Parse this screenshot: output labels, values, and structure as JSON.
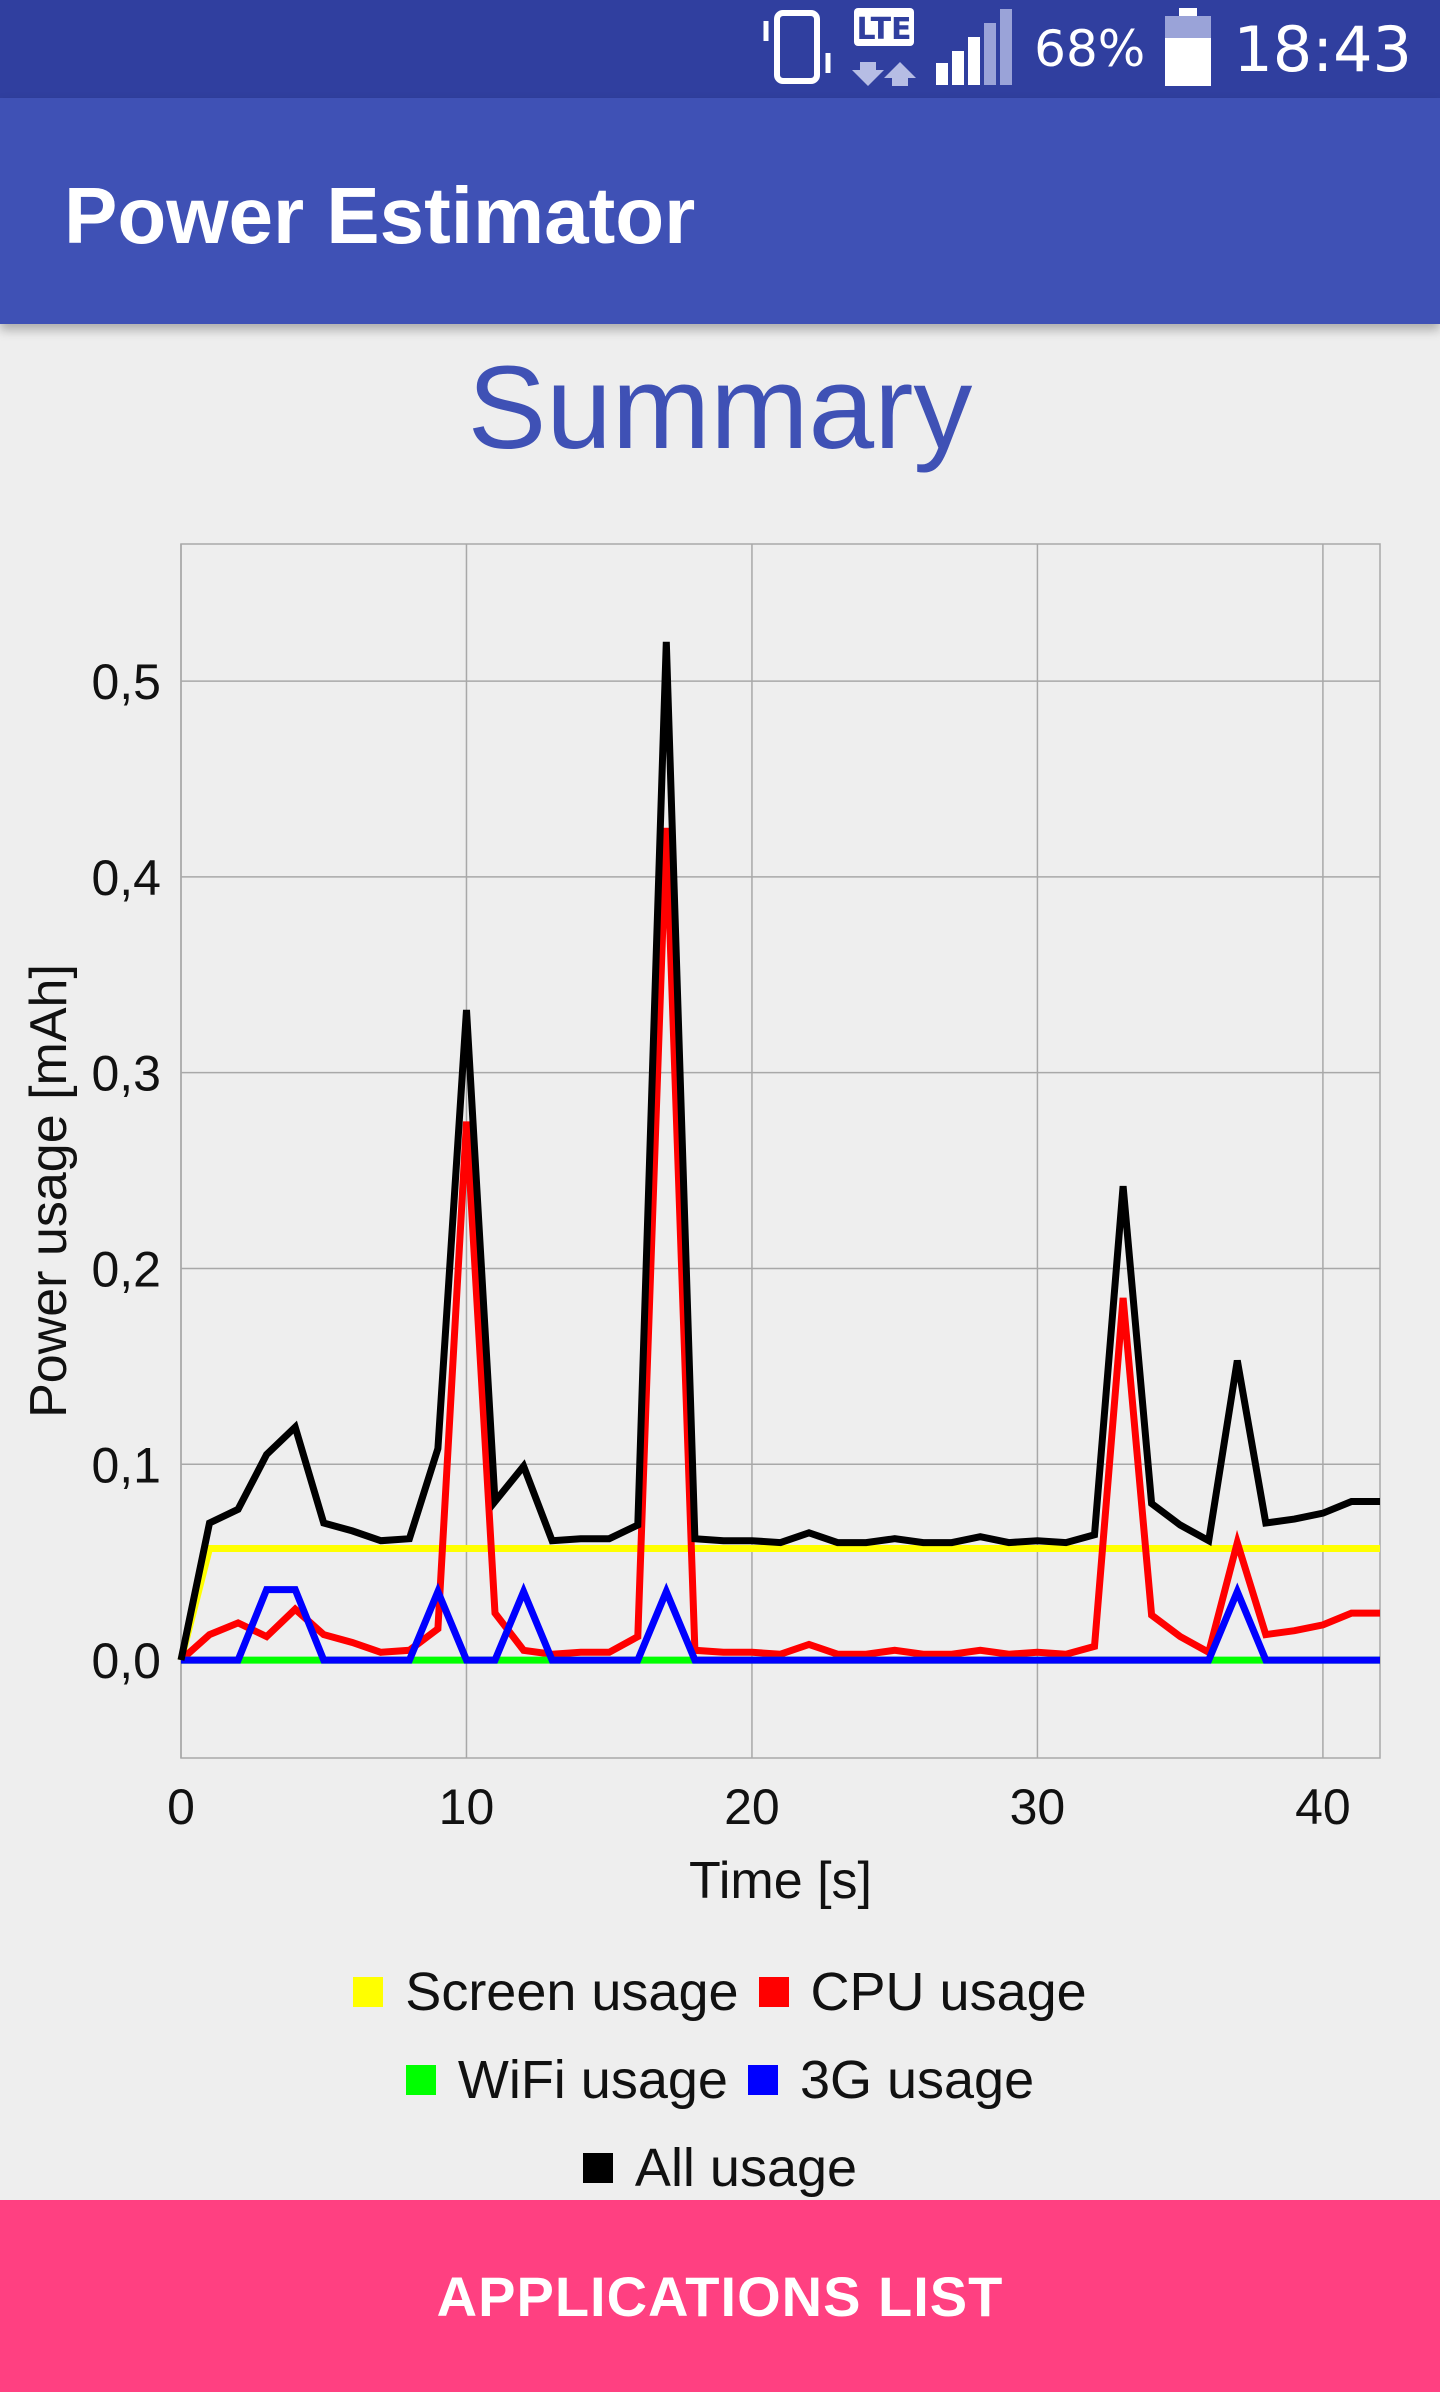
{
  "status_bar": {
    "network": "LTE",
    "battery": "68%",
    "clock": "18:43",
    "icons": [
      "vibrate-icon",
      "lte-data-icon",
      "signal-icon",
      "battery-icon"
    ]
  },
  "app_bar": {
    "title": "Power Estimator"
  },
  "summary": {
    "title": "Summary"
  },
  "chart_data": {
    "type": "line",
    "xlabel": "Time [s]",
    "ylabel": "Power usage [mAh]",
    "xlim": [
      0,
      42
    ],
    "ylim": [
      -0.05,
      0.57
    ],
    "x_ticks": [
      0,
      10,
      20,
      30,
      40
    ],
    "x_tick_labels": [
      "0",
      "10",
      "20",
      "30",
      "40"
    ],
    "y_ticks": [
      0,
      0.1,
      0.2,
      0.3,
      0.4,
      0.5
    ],
    "y_tick_labels": [
      "0,0",
      "0,1",
      "0,2",
      "0,3",
      "0,4",
      "0,5"
    ],
    "grid": true,
    "legend_position": "bottom",
    "x": [
      0,
      1,
      2,
      3,
      4,
      5,
      6,
      7,
      8,
      9,
      10,
      11,
      12,
      13,
      14,
      15,
      16,
      17,
      18,
      19,
      20,
      21,
      22,
      23,
      24,
      25,
      26,
      27,
      28,
      29,
      30,
      31,
      32,
      33,
      34,
      35,
      36,
      37,
      38,
      39,
      40,
      41,
      42
    ],
    "series": [
      {
        "name": "Screen usage",
        "color": "#ffff00",
        "values": [
          0,
          0.057,
          0.057,
          0.057,
          0.057,
          0.057,
          0.057,
          0.057,
          0.057,
          0.057,
          0.057,
          0.057,
          0.057,
          0.057,
          0.057,
          0.057,
          0.057,
          0.057,
          0.057,
          0.057,
          0.057,
          0.057,
          0.057,
          0.057,
          0.057,
          0.057,
          0.057,
          0.057,
          0.057,
          0.057,
          0.057,
          0.057,
          0.057,
          0.057,
          0.057,
          0.057,
          0.057,
          0.057,
          0.057,
          0.057,
          0.057,
          0.057,
          0.057
        ]
      },
      {
        "name": "CPU usage",
        "color": "#ff0000",
        "values": [
          0,
          0.013,
          0.019,
          0.012,
          0.026,
          0.013,
          0.009,
          0.004,
          0.005,
          0.016,
          0.275,
          0.024,
          0.005,
          0.003,
          0.004,
          0.004,
          0.012,
          0.425,
          0.005,
          0.004,
          0.004,
          0.003,
          0.008,
          0.003,
          0.003,
          0.005,
          0.003,
          0.003,
          0.005,
          0.003,
          0.004,
          0.003,
          0.007,
          0.185,
          0.023,
          0.012,
          0.004,
          0.06,
          0.013,
          0.015,
          0.018,
          0.024,
          0.024
        ]
      },
      {
        "name": "WiFi usage",
        "color": "#00ff00",
        "values": [
          0,
          0,
          0,
          0,
          0,
          0,
          0,
          0,
          0,
          0,
          0,
          0,
          0,
          0,
          0,
          0,
          0,
          0,
          0,
          0,
          0,
          0,
          0,
          0,
          0,
          0,
          0,
          0,
          0,
          0,
          0,
          0,
          0,
          0,
          0,
          0,
          0,
          0,
          0,
          0,
          0,
          0,
          0
        ]
      },
      {
        "name": "3G usage",
        "color": "#0000ff",
        "values": [
          0,
          0,
          0,
          0.036,
          0.036,
          0,
          0,
          0,
          0,
          0.035,
          0,
          0,
          0.035,
          0,
          0,
          0,
          0,
          0.035,
          0,
          0,
          0,
          0,
          0,
          0,
          0,
          0,
          0,
          0,
          0,
          0,
          0,
          0,
          0,
          0,
          0,
          0,
          0,
          0.035,
          0,
          0,
          0,
          0,
          0
        ]
      },
      {
        "name": "All usage",
        "color": "#000000",
        "values": [
          0,
          0.07,
          0.077,
          0.105,
          0.119,
          0.07,
          0.066,
          0.061,
          0.062,
          0.108,
          0.332,
          0.081,
          0.099,
          0.061,
          0.062,
          0.062,
          0.069,
          0.52,
          0.062,
          0.061,
          0.061,
          0.06,
          0.065,
          0.06,
          0.06,
          0.062,
          0.06,
          0.06,
          0.063,
          0.06,
          0.061,
          0.06,
          0.064,
          0.242,
          0.08,
          0.069,
          0.061,
          0.153,
          0.07,
          0.072,
          0.075,
          0.081,
          0.081
        ]
      }
    ]
  },
  "actions": {
    "applications_list": "APPLICATIONS LIST"
  }
}
